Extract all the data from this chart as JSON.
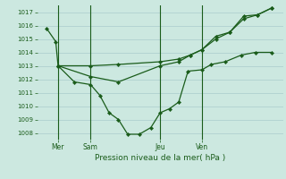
{
  "bg_color": "#cce8e0",
  "grid_color": "#aacccc",
  "line_color": "#1a5c1a",
  "xlabel": "Pression niveau de la mer( hPa )",
  "ylim": [
    1007.5,
    1017.5
  ],
  "yticks": [
    1008,
    1009,
    1010,
    1011,
    1012,
    1013,
    1014,
    1015,
    1016,
    1017
  ],
  "xtick_labels": [
    "Mer",
    "Sam",
    "Jeu",
    "Ven"
  ],
  "xtick_positions": [
    0.08,
    0.22,
    0.52,
    0.7
  ],
  "vlines_x": [
    0.08,
    0.22,
    0.52,
    0.7
  ],
  "series1_x": [
    0.03,
    0.07,
    0.08,
    0.15,
    0.22,
    0.26,
    0.3,
    0.34,
    0.38,
    0.43,
    0.48,
    0.52,
    0.56,
    0.6,
    0.64,
    0.7,
    0.74,
    0.8,
    0.87,
    0.93,
    1.0
  ],
  "series1_y": [
    1015.8,
    1014.8,
    1013.0,
    1011.8,
    1011.6,
    1010.8,
    1009.5,
    1009.0,
    1007.9,
    1007.9,
    1008.4,
    1009.5,
    1009.8,
    1010.3,
    1012.6,
    1012.7,
    1013.1,
    1013.3,
    1013.8,
    1014.0,
    1014.0
  ],
  "series2_x": [
    0.08,
    0.22,
    0.34,
    0.52,
    0.6,
    0.65,
    0.7,
    0.76,
    0.82,
    0.88,
    0.94,
    1.0
  ],
  "series2_y": [
    1013.0,
    1013.0,
    1013.1,
    1013.3,
    1013.5,
    1013.8,
    1014.2,
    1015.0,
    1015.5,
    1016.5,
    1016.8,
    1017.3
  ],
  "series3_x": [
    0.08,
    0.22,
    0.34,
    0.52,
    0.6,
    0.65,
    0.7,
    0.76,
    0.82,
    0.88,
    0.94,
    1.0
  ],
  "series3_y": [
    1013.0,
    1012.2,
    1011.8,
    1013.0,
    1013.3,
    1013.8,
    1014.2,
    1015.2,
    1015.5,
    1016.7,
    1016.8,
    1017.3
  ],
  "xlim": [
    -0.01,
    1.05
  ],
  "figsize": [
    3.2,
    2.0
  ],
  "dpi": 100
}
